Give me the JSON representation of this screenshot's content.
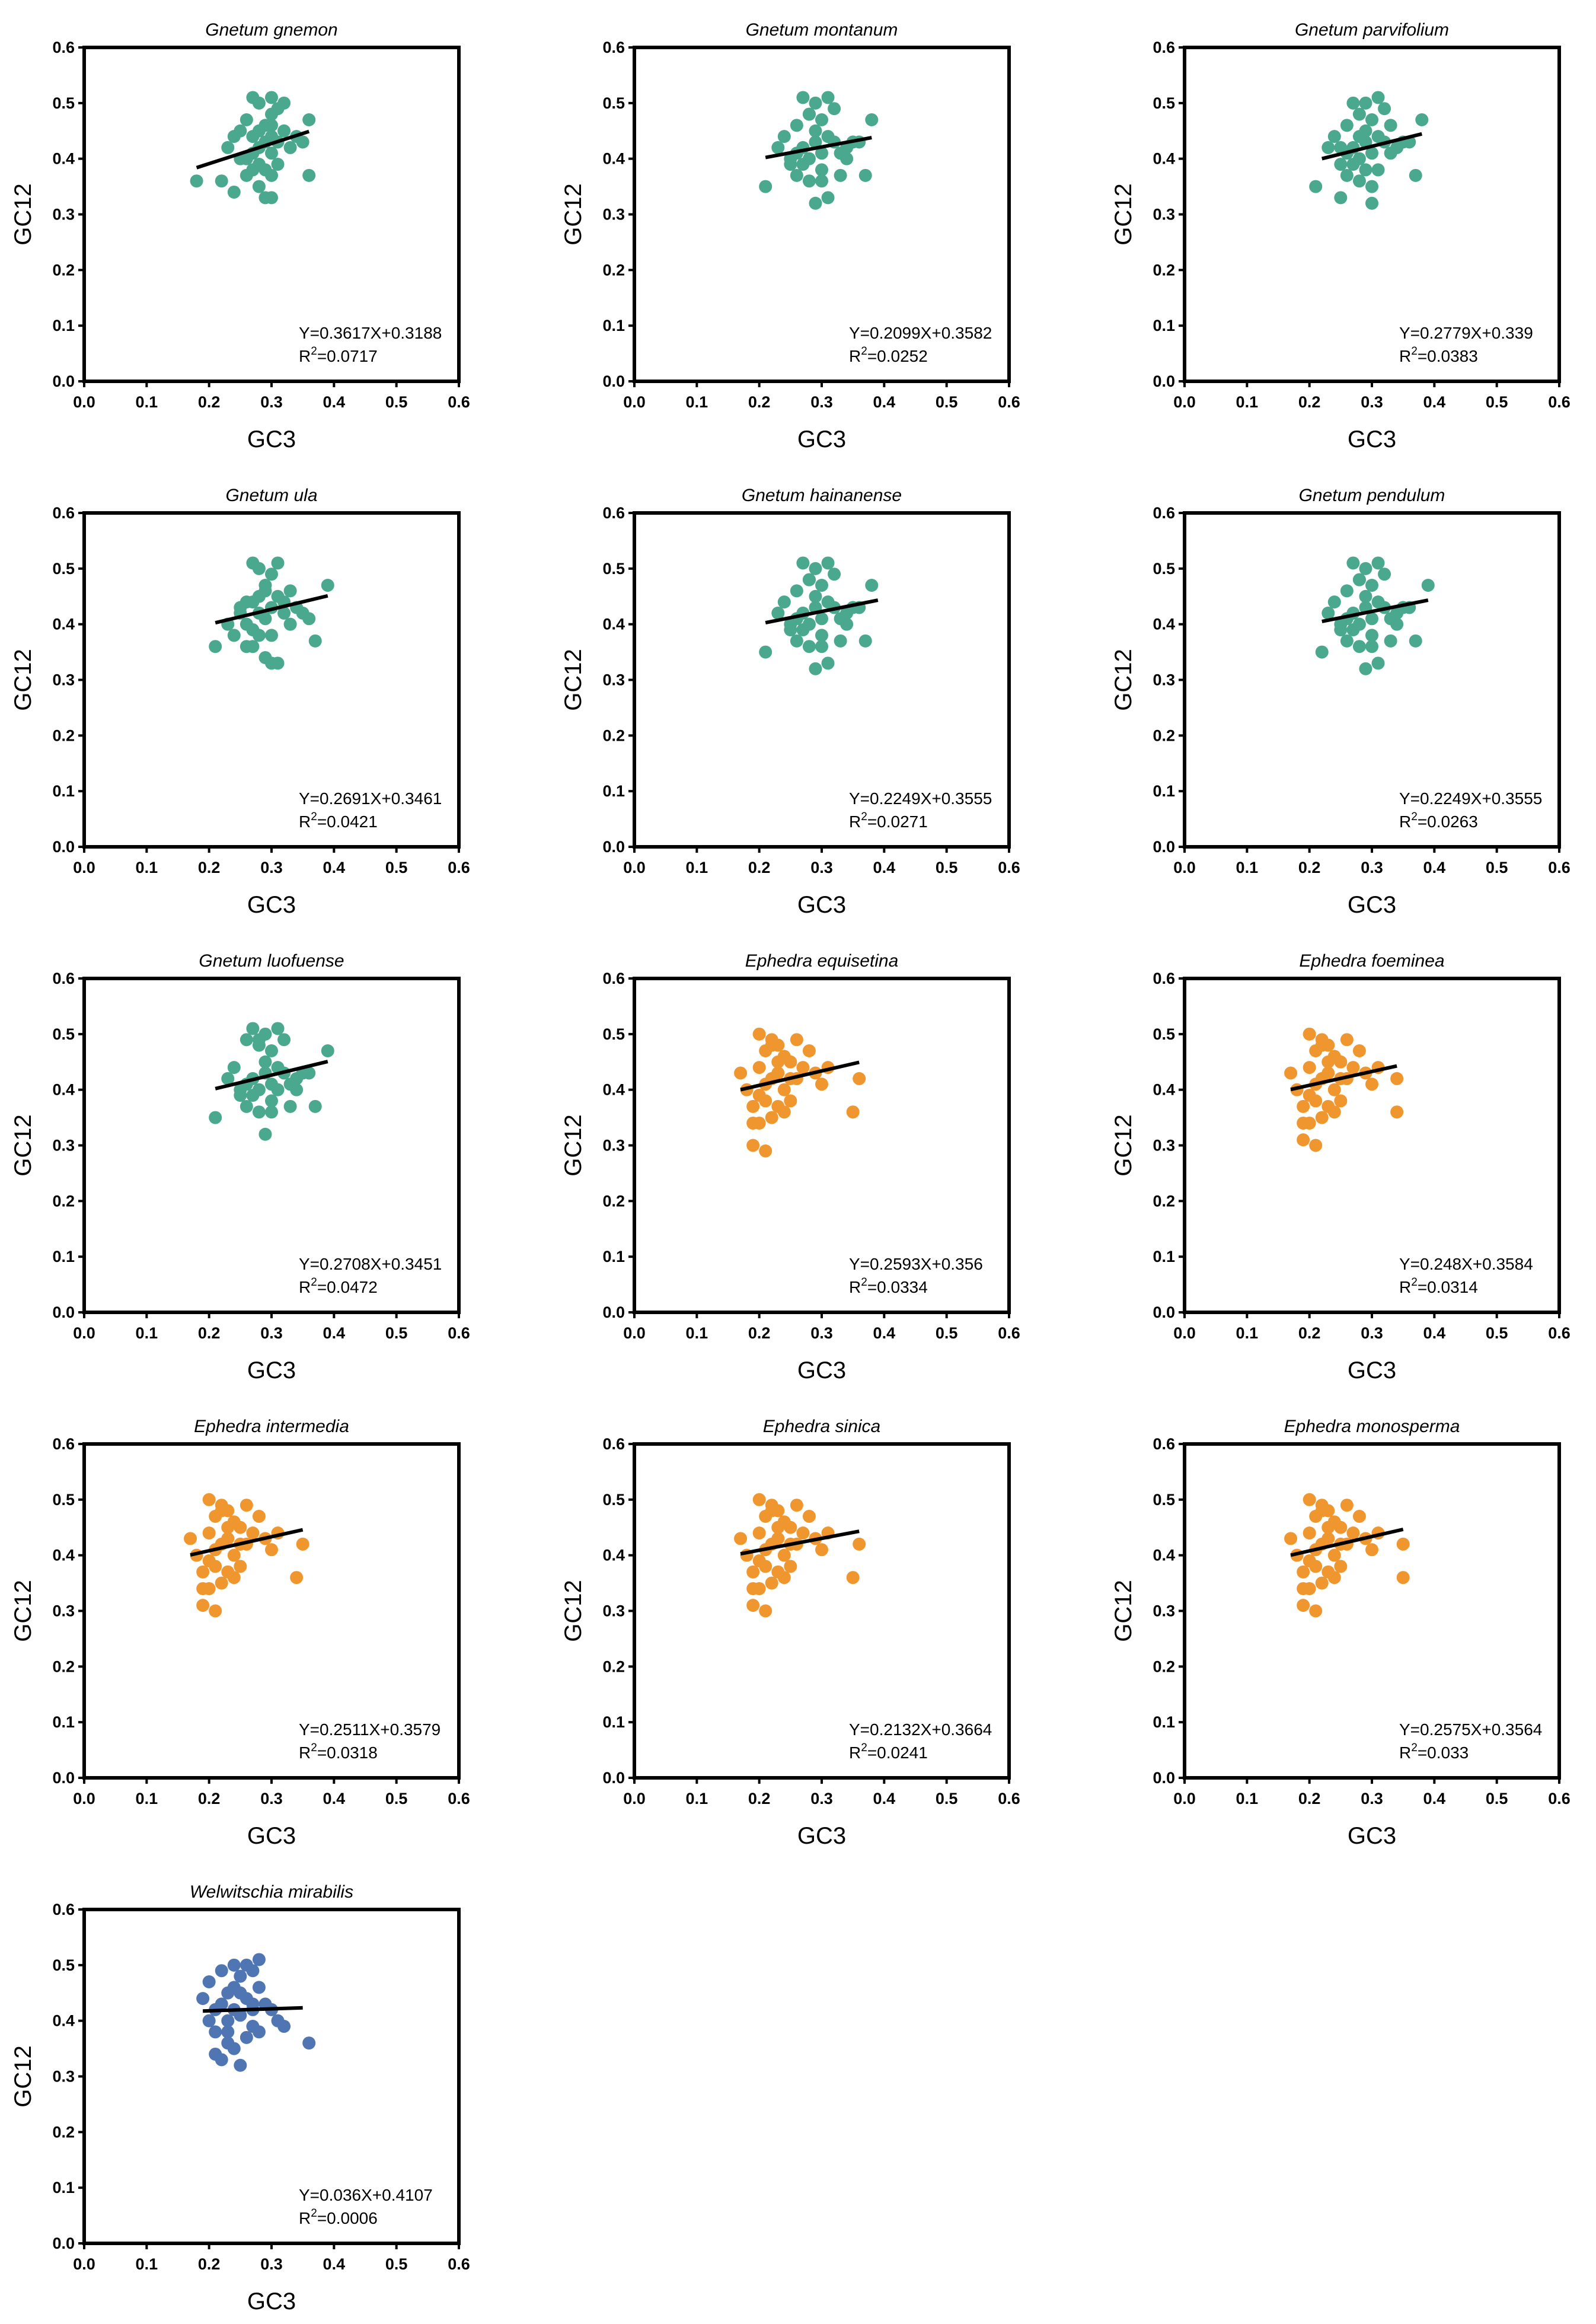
{
  "figure": {
    "colors": {
      "gnetum": "#4aa88f",
      "ephedra": "#f0962e",
      "welwitschia": "#4f76b3",
      "trend": "#000000"
    },
    "xlim": [
      0,
      0.6
    ],
    "ylim": [
      0,
      0.6
    ],
    "xticks": [
      "0.0",
      "0.1",
      "0.2",
      "0.3",
      "0.4",
      "0.5",
      "0.6"
    ],
    "yticks": [
      "0.0",
      "0.1",
      "0.2",
      "0.3",
      "0.4",
      "0.5",
      "0.6"
    ]
  },
  "chart_data": [
    {
      "type": "scatter",
      "title": "Gnetum gnemon",
      "xlabel": "GC3",
      "ylabel": "GC12",
      "color": "gnetum",
      "equation": "Y=0.3617X+0.3188",
      "r2_prefix": "R",
      "r2_exp": "2",
      "r2_value": "=0.0717",
      "slope": 0.3617,
      "intercept": 0.3188,
      "fit_range": [
        0.18,
        0.36
      ],
      "x": [
        0.18,
        0.22,
        0.23,
        0.24,
        0.25,
        0.25,
        0.26,
        0.26,
        0.27,
        0.27,
        0.27,
        0.27,
        0.28,
        0.28,
        0.28,
        0.28,
        0.29,
        0.29,
        0.29,
        0.29,
        0.3,
        0.3,
        0.3,
        0.3,
        0.3,
        0.3,
        0.31,
        0.31,
        0.31,
        0.32,
        0.32,
        0.33,
        0.34,
        0.35,
        0.36,
        0.36,
        0.26,
        0.28,
        0.24,
        0.3
      ],
      "y": [
        0.36,
        0.36,
        0.42,
        0.44,
        0.4,
        0.45,
        0.37,
        0.47,
        0.51,
        0.44,
        0.41,
        0.38,
        0.5,
        0.42,
        0.39,
        0.35,
        0.46,
        0.43,
        0.38,
        0.33,
        0.51,
        0.48,
        0.44,
        0.41,
        0.37,
        0.33,
        0.49,
        0.43,
        0.39,
        0.5,
        0.45,
        0.42,
        0.44,
        0.43,
        0.47,
        0.37,
        0.4,
        0.45,
        0.34,
        0.46
      ]
    },
    {
      "type": "scatter",
      "title": "Gnetum montanum",
      "xlabel": "GC3",
      "ylabel": "GC12",
      "color": "gnetum",
      "equation": "Y=0.2099X+0.3582",
      "r2_prefix": "R",
      "r2_exp": "2",
      "r2_value": "=0.0252",
      "slope": 0.2099,
      "intercept": 0.3582,
      "fit_range": [
        0.21,
        0.38
      ],
      "x": [
        0.21,
        0.23,
        0.24,
        0.25,
        0.26,
        0.26,
        0.27,
        0.27,
        0.28,
        0.28,
        0.28,
        0.29,
        0.29,
        0.29,
        0.3,
        0.3,
        0.3,
        0.31,
        0.31,
        0.32,
        0.32,
        0.33,
        0.33,
        0.34,
        0.35,
        0.36,
        0.37,
        0.38,
        0.27,
        0.29,
        0.26,
        0.31,
        0.3,
        0.34,
        0.28,
        0.25
      ],
      "y": [
        0.35,
        0.42,
        0.44,
        0.39,
        0.46,
        0.37,
        0.51,
        0.42,
        0.48,
        0.4,
        0.36,
        0.5,
        0.43,
        0.32,
        0.47,
        0.41,
        0.38,
        0.51,
        0.33,
        0.49,
        0.43,
        0.41,
        0.37,
        0.42,
        0.43,
        0.43,
        0.37,
        0.47,
        0.39,
        0.45,
        0.41,
        0.44,
        0.36,
        0.4,
        0.48,
        0.4
      ]
    },
    {
      "type": "scatter",
      "title": "Gnetum parvifolium",
      "xlabel": "GC3",
      "ylabel": "GC12",
      "color": "gnetum",
      "equation": "Y=0.2779X+0.339",
      "r2_prefix": "R",
      "r2_exp": "2",
      "r2_value": "=0.0383",
      "slope": 0.2779,
      "intercept": 0.339,
      "fit_range": [
        0.22,
        0.38
      ],
      "x": [
        0.21,
        0.23,
        0.24,
        0.25,
        0.25,
        0.26,
        0.26,
        0.27,
        0.27,
        0.28,
        0.28,
        0.28,
        0.29,
        0.29,
        0.29,
        0.3,
        0.3,
        0.3,
        0.31,
        0.31,
        0.31,
        0.32,
        0.32,
        0.33,
        0.34,
        0.35,
        0.36,
        0.37,
        0.38,
        0.27,
        0.29,
        0.26,
        0.3,
        0.28,
        0.33,
        0.25
      ],
      "y": [
        0.35,
        0.42,
        0.44,
        0.39,
        0.33,
        0.46,
        0.37,
        0.5,
        0.42,
        0.48,
        0.4,
        0.36,
        0.5,
        0.43,
        0.38,
        0.47,
        0.41,
        0.32,
        0.51,
        0.44,
        0.38,
        0.49,
        0.43,
        0.41,
        0.42,
        0.43,
        0.43,
        0.37,
        0.47,
        0.39,
        0.45,
        0.41,
        0.35,
        0.44,
        0.46,
        0.42
      ]
    },
    {
      "type": "scatter",
      "title": "Gnetum ula",
      "xlabel": "GC3",
      "ylabel": "GC12",
      "color": "gnetum",
      "equation": "Y=0.2691X+0.3461",
      "r2_prefix": "R",
      "r2_exp": "2",
      "r2_value": "=0.0421",
      "slope": 0.2691,
      "intercept": 0.3461,
      "fit_range": [
        0.21,
        0.39
      ],
      "x": [
        0.21,
        0.23,
        0.24,
        0.25,
        0.26,
        0.26,
        0.27,
        0.27,
        0.27,
        0.28,
        0.28,
        0.28,
        0.29,
        0.29,
        0.29,
        0.3,
        0.3,
        0.3,
        0.31,
        0.31,
        0.31,
        0.32,
        0.33,
        0.34,
        0.35,
        0.36,
        0.37,
        0.39,
        0.26,
        0.28,
        0.3,
        0.32,
        0.29,
        0.27,
        0.33,
        0.25
      ],
      "y": [
        0.36,
        0.4,
        0.38,
        0.42,
        0.44,
        0.36,
        0.51,
        0.44,
        0.39,
        0.5,
        0.42,
        0.38,
        0.46,
        0.41,
        0.34,
        0.49,
        0.43,
        0.33,
        0.51,
        0.45,
        0.33,
        0.44,
        0.46,
        0.43,
        0.42,
        0.41,
        0.37,
        0.47,
        0.4,
        0.45,
        0.38,
        0.42,
        0.47,
        0.36,
        0.4,
        0.43
      ]
    },
    {
      "type": "scatter",
      "title": "Gnetum hainanense",
      "xlabel": "GC3",
      "ylabel": "GC12",
      "color": "gnetum",
      "equation": "Y=0.2249X+0.3555",
      "r2_prefix": "R",
      "r2_exp": "2",
      "r2_value": "=0.0271",
      "slope": 0.2249,
      "intercept": 0.3555,
      "fit_range": [
        0.21,
        0.39
      ],
      "x": [
        0.21,
        0.23,
        0.24,
        0.25,
        0.26,
        0.26,
        0.27,
        0.27,
        0.28,
        0.28,
        0.28,
        0.29,
        0.29,
        0.29,
        0.3,
        0.3,
        0.3,
        0.31,
        0.31,
        0.32,
        0.32,
        0.33,
        0.33,
        0.34,
        0.35,
        0.36,
        0.37,
        0.38,
        0.27,
        0.29,
        0.26,
        0.31,
        0.3,
        0.34,
        0.28,
        0.25
      ],
      "y": [
        0.35,
        0.42,
        0.44,
        0.39,
        0.46,
        0.37,
        0.51,
        0.42,
        0.48,
        0.4,
        0.36,
        0.5,
        0.43,
        0.32,
        0.47,
        0.41,
        0.38,
        0.51,
        0.33,
        0.49,
        0.43,
        0.41,
        0.37,
        0.42,
        0.43,
        0.43,
        0.37,
        0.47,
        0.39,
        0.45,
        0.41,
        0.44,
        0.36,
        0.4,
        0.48,
        0.4
      ]
    },
    {
      "type": "scatter",
      "title": "Gnetum pendulum",
      "xlabel": "GC3",
      "ylabel": "GC12",
      "color": "gnetum",
      "equation": "Y=0.2249X+0.3555",
      "r2_prefix": "R",
      "r2_exp": "2",
      "r2_value": "=0.0263",
      "slope": 0.2249,
      "intercept": 0.3555,
      "fit_range": [
        0.22,
        0.39
      ],
      "x": [
        0.22,
        0.23,
        0.24,
        0.25,
        0.26,
        0.26,
        0.27,
        0.27,
        0.28,
        0.28,
        0.28,
        0.29,
        0.29,
        0.29,
        0.3,
        0.3,
        0.3,
        0.31,
        0.31,
        0.32,
        0.32,
        0.33,
        0.33,
        0.34,
        0.35,
        0.36,
        0.37,
        0.39,
        0.27,
        0.29,
        0.26,
        0.31,
        0.3,
        0.34,
        0.28,
        0.25
      ],
      "y": [
        0.35,
        0.42,
        0.44,
        0.39,
        0.46,
        0.37,
        0.51,
        0.42,
        0.48,
        0.4,
        0.36,
        0.5,
        0.43,
        0.32,
        0.47,
        0.41,
        0.38,
        0.51,
        0.33,
        0.49,
        0.43,
        0.41,
        0.37,
        0.42,
        0.43,
        0.43,
        0.37,
        0.47,
        0.39,
        0.45,
        0.41,
        0.44,
        0.36,
        0.4,
        0.48,
        0.4
      ]
    },
    {
      "type": "scatter",
      "title": "Gnetum luofuense",
      "xlabel": "GC3",
      "ylabel": "GC12",
      "color": "gnetum",
      "equation": "Y=0.2708X+0.3451",
      "r2_prefix": "R",
      "r2_exp": "2",
      "r2_value": "=0.0472",
      "slope": 0.2708,
      "intercept": 0.3451,
      "fit_range": [
        0.21,
        0.39
      ],
      "x": [
        0.21,
        0.23,
        0.24,
        0.25,
        0.26,
        0.26,
        0.27,
        0.27,
        0.28,
        0.28,
        0.28,
        0.29,
        0.29,
        0.29,
        0.3,
        0.3,
        0.3,
        0.31,
        0.31,
        0.32,
        0.32,
        0.33,
        0.33,
        0.34,
        0.35,
        0.36,
        0.37,
        0.39,
        0.27,
        0.29,
        0.26,
        0.31,
        0.3,
        0.34,
        0.28,
        0.25
      ],
      "y": [
        0.35,
        0.42,
        0.44,
        0.39,
        0.49,
        0.37,
        0.51,
        0.42,
        0.49,
        0.4,
        0.36,
        0.5,
        0.43,
        0.32,
        0.47,
        0.41,
        0.38,
        0.51,
        0.4,
        0.49,
        0.43,
        0.41,
        0.37,
        0.42,
        0.43,
        0.43,
        0.37,
        0.47,
        0.39,
        0.45,
        0.41,
        0.44,
        0.36,
        0.4,
        0.48,
        0.4
      ]
    },
    {
      "type": "scatter",
      "title": "Ephedra equisetina",
      "xlabel": "GC3",
      "ylabel": "GC12",
      "color": "ephedra",
      "equation": "Y=0.2593X+0.356",
      "r2_prefix": "R",
      "r2_exp": "2",
      "r2_value": "=0.0334",
      "slope": 0.2593,
      "intercept": 0.356,
      "fit_range": [
        0.17,
        0.36
      ],
      "x": [
        0.17,
        0.18,
        0.19,
        0.19,
        0.2,
        0.2,
        0.2,
        0.21,
        0.21,
        0.21,
        0.22,
        0.22,
        0.22,
        0.23,
        0.23,
        0.23,
        0.24,
        0.24,
        0.24,
        0.25,
        0.25,
        0.26,
        0.26,
        0.27,
        0.28,
        0.29,
        0.3,
        0.31,
        0.35,
        0.36,
        0.19,
        0.21,
        0.23,
        0.25,
        0.2,
        0.22
      ],
      "y": [
        0.43,
        0.4,
        0.37,
        0.3,
        0.5,
        0.44,
        0.34,
        0.47,
        0.41,
        0.29,
        0.49,
        0.42,
        0.35,
        0.48,
        0.43,
        0.37,
        0.46,
        0.4,
        0.36,
        0.45,
        0.38,
        0.49,
        0.42,
        0.44,
        0.47,
        0.43,
        0.41,
        0.44,
        0.36,
        0.42,
        0.34,
        0.38,
        0.45,
        0.42,
        0.39,
        0.48
      ]
    },
    {
      "type": "scatter",
      "title": "Ephedra foeminea",
      "xlabel": "GC3",
      "ylabel": "GC12",
      "color": "ephedra",
      "equation": "Y=0.248X+0.3584",
      "r2_prefix": "R",
      "r2_exp": "2",
      "r2_value": "=0.0314",
      "slope": 0.248,
      "intercept": 0.3584,
      "fit_range": [
        0.17,
        0.34
      ],
      "x": [
        0.17,
        0.18,
        0.19,
        0.19,
        0.2,
        0.2,
        0.2,
        0.21,
        0.21,
        0.21,
        0.22,
        0.22,
        0.22,
        0.23,
        0.23,
        0.23,
        0.24,
        0.24,
        0.24,
        0.25,
        0.25,
        0.26,
        0.26,
        0.27,
        0.28,
        0.29,
        0.3,
        0.31,
        0.34,
        0.34,
        0.19,
        0.21,
        0.23,
        0.25,
        0.2,
        0.22
      ],
      "y": [
        0.43,
        0.4,
        0.37,
        0.31,
        0.5,
        0.44,
        0.34,
        0.47,
        0.41,
        0.3,
        0.49,
        0.42,
        0.35,
        0.48,
        0.43,
        0.37,
        0.46,
        0.4,
        0.36,
        0.45,
        0.38,
        0.49,
        0.42,
        0.44,
        0.47,
        0.43,
        0.41,
        0.44,
        0.36,
        0.42,
        0.34,
        0.38,
        0.45,
        0.42,
        0.39,
        0.48
      ]
    },
    {
      "type": "scatter",
      "title": "Ephedra intermedia",
      "xlabel": "GC3",
      "ylabel": "GC12",
      "color": "ephedra",
      "equation": "Y=0.2511X+0.3579",
      "r2_prefix": "R",
      "r2_exp": "2",
      "r2_value": "=0.0318",
      "slope": 0.2511,
      "intercept": 0.3579,
      "fit_range": [
        0.17,
        0.35
      ],
      "x": [
        0.17,
        0.18,
        0.19,
        0.19,
        0.2,
        0.2,
        0.2,
        0.21,
        0.21,
        0.21,
        0.22,
        0.22,
        0.22,
        0.23,
        0.23,
        0.23,
        0.24,
        0.24,
        0.24,
        0.25,
        0.25,
        0.26,
        0.26,
        0.27,
        0.28,
        0.29,
        0.3,
        0.31,
        0.34,
        0.35,
        0.19,
        0.21,
        0.23,
        0.25,
        0.2,
        0.22
      ],
      "y": [
        0.43,
        0.4,
        0.37,
        0.31,
        0.5,
        0.44,
        0.34,
        0.47,
        0.41,
        0.3,
        0.49,
        0.42,
        0.35,
        0.48,
        0.43,
        0.37,
        0.46,
        0.4,
        0.36,
        0.45,
        0.38,
        0.49,
        0.42,
        0.44,
        0.47,
        0.43,
        0.41,
        0.44,
        0.36,
        0.42,
        0.34,
        0.38,
        0.45,
        0.42,
        0.39,
        0.48
      ]
    },
    {
      "type": "scatter",
      "title": "Ephedra sinica",
      "xlabel": "GC3",
      "ylabel": "GC12",
      "color": "ephedra",
      "equation": "Y=0.2132X+0.3664",
      "r2_prefix": "R",
      "r2_exp": "2",
      "r2_value": "=0.0241",
      "slope": 0.2132,
      "intercept": 0.3664,
      "fit_range": [
        0.17,
        0.36
      ],
      "x": [
        0.17,
        0.18,
        0.19,
        0.19,
        0.2,
        0.2,
        0.2,
        0.21,
        0.21,
        0.21,
        0.22,
        0.22,
        0.22,
        0.23,
        0.23,
        0.23,
        0.24,
        0.24,
        0.24,
        0.25,
        0.25,
        0.26,
        0.26,
        0.27,
        0.28,
        0.29,
        0.3,
        0.31,
        0.35,
        0.36,
        0.19,
        0.21,
        0.23,
        0.25,
        0.2,
        0.22
      ],
      "y": [
        0.43,
        0.4,
        0.37,
        0.31,
        0.5,
        0.44,
        0.34,
        0.47,
        0.41,
        0.3,
        0.49,
        0.42,
        0.35,
        0.48,
        0.43,
        0.37,
        0.46,
        0.4,
        0.36,
        0.45,
        0.38,
        0.49,
        0.42,
        0.44,
        0.47,
        0.43,
        0.41,
        0.44,
        0.36,
        0.42,
        0.34,
        0.38,
        0.45,
        0.42,
        0.39,
        0.48
      ]
    },
    {
      "type": "scatter",
      "title": "Ephedra monosperma",
      "xlabel": "GC3",
      "ylabel": "GC12",
      "color": "ephedra",
      "equation": "Y=0.2575X+0.3564",
      "r2_prefix": "R",
      "r2_exp": "2",
      "r2_value": "=0.033",
      "slope": 0.2575,
      "intercept": 0.3564,
      "fit_range": [
        0.17,
        0.35
      ],
      "x": [
        0.17,
        0.18,
        0.19,
        0.19,
        0.2,
        0.2,
        0.2,
        0.21,
        0.21,
        0.21,
        0.22,
        0.22,
        0.22,
        0.23,
        0.23,
        0.23,
        0.24,
        0.24,
        0.24,
        0.25,
        0.25,
        0.26,
        0.26,
        0.27,
        0.28,
        0.29,
        0.3,
        0.31,
        0.35,
        0.35,
        0.19,
        0.21,
        0.23,
        0.25,
        0.2,
        0.22
      ],
      "y": [
        0.43,
        0.4,
        0.37,
        0.31,
        0.5,
        0.44,
        0.34,
        0.47,
        0.41,
        0.3,
        0.49,
        0.42,
        0.35,
        0.48,
        0.43,
        0.37,
        0.46,
        0.4,
        0.36,
        0.45,
        0.38,
        0.49,
        0.42,
        0.44,
        0.47,
        0.43,
        0.41,
        0.44,
        0.36,
        0.42,
        0.34,
        0.38,
        0.45,
        0.42,
        0.39,
        0.48
      ]
    },
    {
      "type": "scatter",
      "title": "Welwitschia mirabilis",
      "xlabel": "GC3",
      "ylabel": "GC12",
      "color": "welwitschia",
      "equation": "Y=0.036X+0.4107",
      "r2_prefix": "R",
      "r2_exp": "2",
      "r2_value": "=0.0006",
      "slope": 0.036,
      "intercept": 0.4107,
      "fit_range": [
        0.19,
        0.35
      ],
      "x": [
        0.19,
        0.2,
        0.2,
        0.21,
        0.21,
        0.22,
        0.22,
        0.22,
        0.23,
        0.23,
        0.23,
        0.24,
        0.24,
        0.24,
        0.25,
        0.25,
        0.25,
        0.26,
        0.26,
        0.26,
        0.27,
        0.27,
        0.27,
        0.28,
        0.28,
        0.28,
        0.29,
        0.3,
        0.31,
        0.32,
        0.36,
        0.21,
        0.23,
        0.25,
        0.27,
        0.24
      ],
      "y": [
        0.44,
        0.47,
        0.4,
        0.38,
        0.34,
        0.49,
        0.43,
        0.33,
        0.45,
        0.38,
        0.36,
        0.5,
        0.42,
        0.35,
        0.48,
        0.41,
        0.32,
        0.5,
        0.44,
        0.37,
        0.49,
        0.42,
        0.39,
        0.51,
        0.46,
        0.38,
        0.43,
        0.42,
        0.4,
        0.39,
        0.36,
        0.42,
        0.4,
        0.45,
        0.43,
        0.46
      ]
    }
  ]
}
